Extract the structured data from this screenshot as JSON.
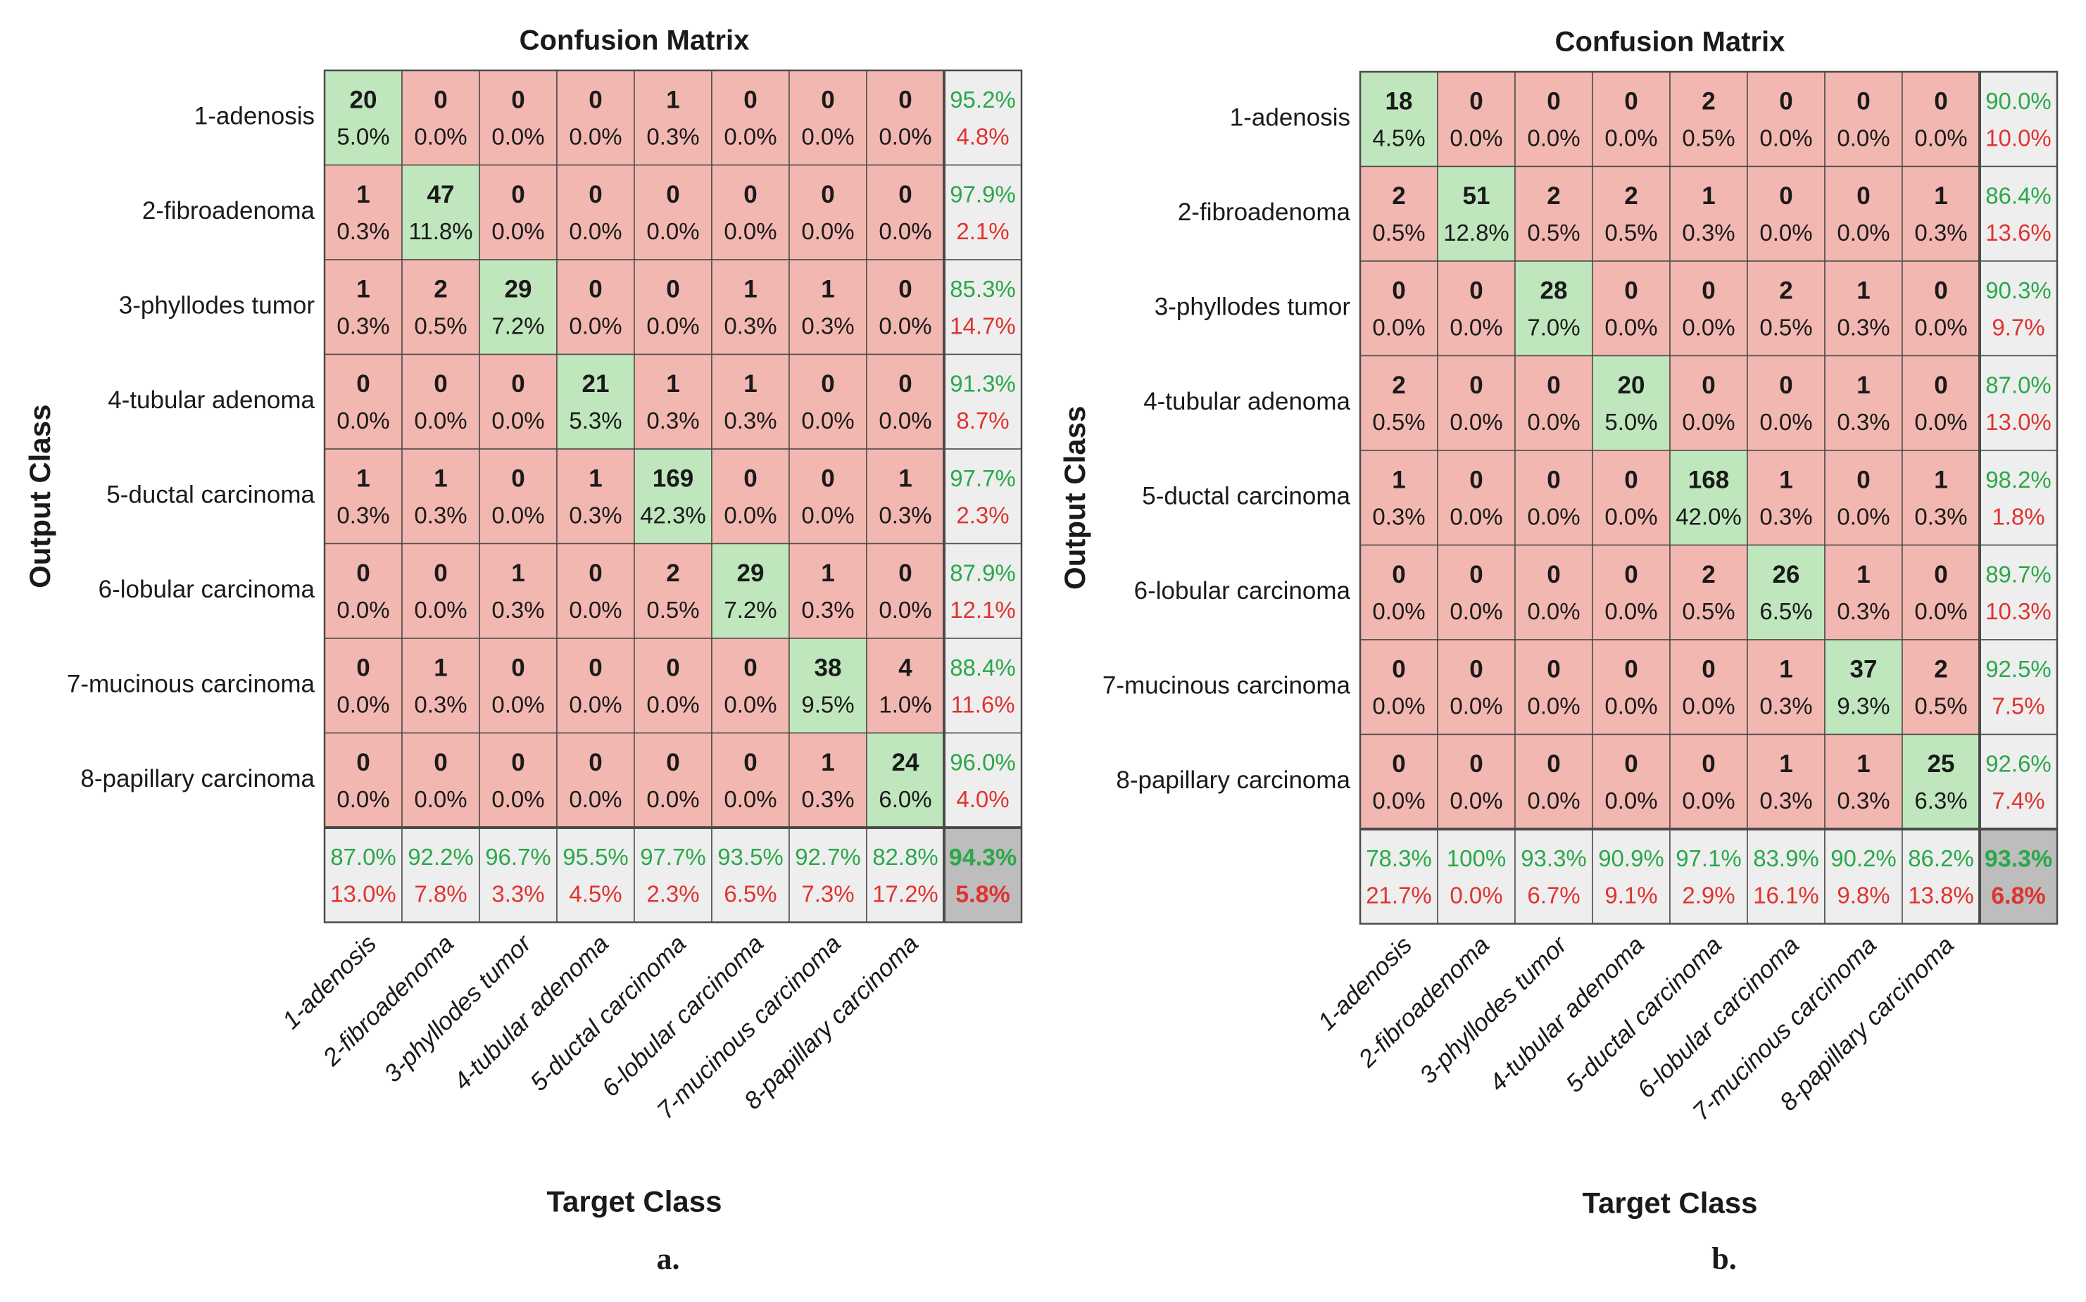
{
  "chart_data": [
    {
      "type": "heatmap",
      "title": "Confusion Matrix",
      "xlabel": "Target Class",
      "ylabel": "Output Class",
      "panel_label": "a.",
      "classes": [
        "1-adenosis",
        "2-fibroadenoma",
        "3-phyllodes tumor",
        "4-tubular adenoma",
        "5-ductal carcinoma",
        "6-lobular carcinoma",
        "7-mucinous carcinoma",
        "8-papillary carcinoma"
      ],
      "counts": [
        [
          20,
          0,
          0,
          0,
          1,
          0,
          0,
          0
        ],
        [
          1,
          47,
          0,
          0,
          0,
          0,
          0,
          0
        ],
        [
          1,
          2,
          29,
          0,
          0,
          1,
          1,
          0
        ],
        [
          0,
          0,
          0,
          21,
          1,
          1,
          0,
          0
        ],
        [
          1,
          1,
          0,
          1,
          169,
          0,
          0,
          1
        ],
        [
          0,
          0,
          1,
          0,
          2,
          29,
          1,
          0
        ],
        [
          0,
          1,
          0,
          0,
          0,
          0,
          38,
          4
        ],
        [
          0,
          0,
          0,
          0,
          0,
          0,
          1,
          24
        ]
      ],
      "percents": [
        [
          "5.0%",
          "0.0%",
          "0.0%",
          "0.0%",
          "0.3%",
          "0.0%",
          "0.0%",
          "0.0%"
        ],
        [
          "0.3%",
          "11.8%",
          "0.0%",
          "0.0%",
          "0.0%",
          "0.0%",
          "0.0%",
          "0.0%"
        ],
        [
          "0.3%",
          "0.5%",
          "7.2%",
          "0.0%",
          "0.0%",
          "0.3%",
          "0.3%",
          "0.0%"
        ],
        [
          "0.0%",
          "0.0%",
          "0.0%",
          "5.3%",
          "0.3%",
          "0.3%",
          "0.0%",
          "0.0%"
        ],
        [
          "0.3%",
          "0.3%",
          "0.0%",
          "0.3%",
          "42.3%",
          "0.0%",
          "0.0%",
          "0.3%"
        ],
        [
          "0.0%",
          "0.0%",
          "0.3%",
          "0.0%",
          "0.5%",
          "7.2%",
          "0.3%",
          "0.0%"
        ],
        [
          "0.0%",
          "0.3%",
          "0.0%",
          "0.0%",
          "0.0%",
          "0.0%",
          "9.5%",
          "1.0%"
        ],
        [
          "0.0%",
          "0.0%",
          "0.0%",
          "0.0%",
          "0.0%",
          "0.0%",
          "0.3%",
          "6.0%"
        ]
      ],
      "row_summary": [
        [
          "95.2%",
          "4.8%"
        ],
        [
          "97.9%",
          "2.1%"
        ],
        [
          "85.3%",
          "14.7%"
        ],
        [
          "91.3%",
          "8.7%"
        ],
        [
          "97.7%",
          "2.3%"
        ],
        [
          "87.9%",
          "12.1%"
        ],
        [
          "88.4%",
          "11.6%"
        ],
        [
          "96.0%",
          "4.0%"
        ]
      ],
      "col_summary": [
        [
          "87.0%",
          "13.0%"
        ],
        [
          "92.2%",
          "7.8%"
        ],
        [
          "96.7%",
          "3.3%"
        ],
        [
          "95.5%",
          "4.5%"
        ],
        [
          "97.7%",
          "2.3%"
        ],
        [
          "93.5%",
          "6.5%"
        ],
        [
          "92.7%",
          "7.3%"
        ],
        [
          "82.8%",
          "17.2%"
        ]
      ],
      "overall": [
        "94.3%",
        "5.8%"
      ]
    },
    {
      "type": "heatmap",
      "title": "Confusion Matrix",
      "xlabel": "Target Class",
      "ylabel": "Output Class",
      "panel_label": "b.",
      "classes": [
        "1-adenosis",
        "2-fibroadenoma",
        "3-phyllodes tumor",
        "4-tubular adenoma",
        "5-ductal carcinoma",
        "6-lobular carcinoma",
        "7-mucinous carcinoma",
        "8-papillary carcinoma"
      ],
      "counts": [
        [
          18,
          0,
          0,
          0,
          2,
          0,
          0,
          0
        ],
        [
          2,
          51,
          2,
          2,
          1,
          0,
          0,
          1
        ],
        [
          0,
          0,
          28,
          0,
          0,
          2,
          1,
          0
        ],
        [
          2,
          0,
          0,
          20,
          0,
          0,
          1,
          0
        ],
        [
          1,
          0,
          0,
          0,
          168,
          1,
          0,
          1
        ],
        [
          0,
          0,
          0,
          0,
          2,
          26,
          1,
          0
        ],
        [
          0,
          0,
          0,
          0,
          0,
          1,
          37,
          2
        ],
        [
          0,
          0,
          0,
          0,
          0,
          1,
          1,
          25
        ]
      ],
      "percents": [
        [
          "4.5%",
          "0.0%",
          "0.0%",
          "0.0%",
          "0.5%",
          "0.0%",
          "0.0%",
          "0.0%"
        ],
        [
          "0.5%",
          "12.8%",
          "0.5%",
          "0.5%",
          "0.3%",
          "0.0%",
          "0.0%",
          "0.3%"
        ],
        [
          "0.0%",
          "0.0%",
          "7.0%",
          "0.0%",
          "0.0%",
          "0.5%",
          "0.3%",
          "0.0%"
        ],
        [
          "0.5%",
          "0.0%",
          "0.0%",
          "5.0%",
          "0.0%",
          "0.0%",
          "0.3%",
          "0.0%"
        ],
        [
          "0.3%",
          "0.0%",
          "0.0%",
          "0.0%",
          "42.0%",
          "0.3%",
          "0.0%",
          "0.3%"
        ],
        [
          "0.0%",
          "0.0%",
          "0.0%",
          "0.0%",
          "0.5%",
          "6.5%",
          "0.3%",
          "0.0%"
        ],
        [
          "0.0%",
          "0.0%",
          "0.0%",
          "0.0%",
          "0.0%",
          "0.3%",
          "9.3%",
          "0.5%"
        ],
        [
          "0.0%",
          "0.0%",
          "0.0%",
          "0.0%",
          "0.0%",
          "0.3%",
          "0.3%",
          "6.3%"
        ]
      ],
      "row_summary": [
        [
          "90.0%",
          "10.0%"
        ],
        [
          "86.4%",
          "13.6%"
        ],
        [
          "90.3%",
          "9.7%"
        ],
        [
          "87.0%",
          "13.0%"
        ],
        [
          "98.2%",
          "1.8%"
        ],
        [
          "89.7%",
          "10.3%"
        ],
        [
          "92.5%",
          "7.5%"
        ],
        [
          "92.6%",
          "7.4%"
        ]
      ],
      "col_summary": [
        [
          "78.3%",
          "21.7%"
        ],
        [
          "100%",
          "0.0%"
        ],
        [
          "93.3%",
          "6.7%"
        ],
        [
          "90.9%",
          "9.1%"
        ],
        [
          "97.1%",
          "2.9%"
        ],
        [
          "83.9%",
          "16.1%"
        ],
        [
          "90.2%",
          "9.8%"
        ],
        [
          "86.2%",
          "13.8%"
        ]
      ],
      "overall": [
        "93.3%",
        "6.8%"
      ]
    }
  ],
  "colors": {
    "diagonal": "#bfe6bd",
    "offdiagonal": "#f2b7b0",
    "summary": "#eeeeee",
    "overall": "#bdbdbd",
    "good_text": "#2aa84a",
    "bad_text": "#e0332f",
    "grid": "#4a4a4a",
    "text": "#1a1a1a"
  }
}
